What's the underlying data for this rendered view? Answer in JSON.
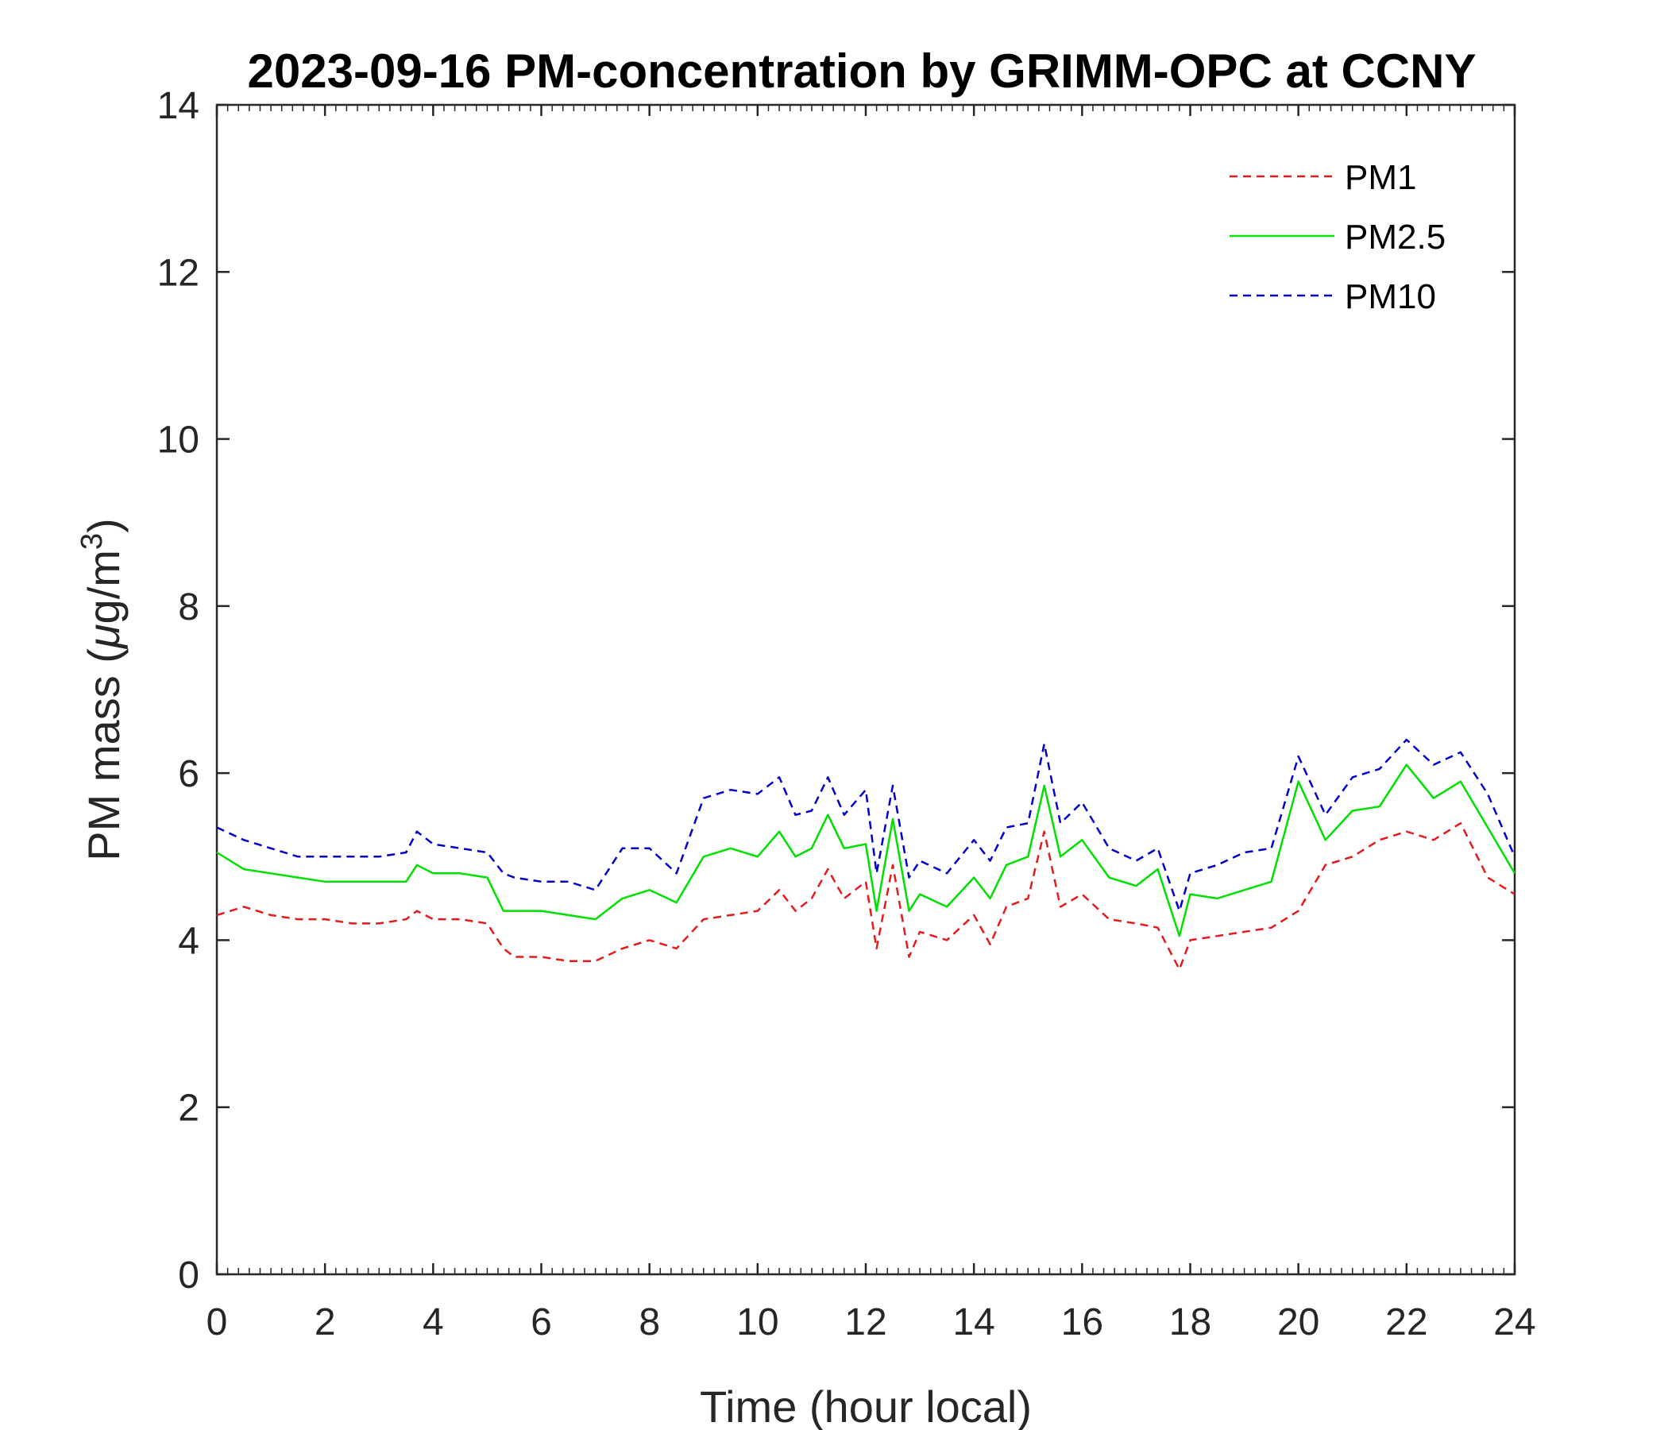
{
  "chart_data": {
    "type": "line",
    "title": "2023-09-16 PM-concentration by GRIMM-OPC at CCNY",
    "xlabel": "Time (hour local)",
    "ylabel_main": "PM mass (",
    "ylabel_mu": "μ",
    "ylabel_unit": "g/m",
    "ylabel_sup": "3",
    "ylabel_close": ")",
    "xlim": [
      0,
      24
    ],
    "ylim": [
      0,
      14
    ],
    "xticks": [
      0,
      2,
      4,
      6,
      8,
      10,
      12,
      14,
      16,
      18,
      20,
      22,
      24
    ],
    "yticks": [
      0,
      2,
      4,
      6,
      8,
      10,
      12,
      14
    ],
    "legend_position": "top-right",
    "colors": {
      "PM1": "#e41a1c",
      "PM2.5": "#00e000",
      "PM10": "#0000cc"
    },
    "x": [
      0,
      0.5,
      1,
      1.5,
      2,
      2.5,
      3,
      3.5,
      3.7,
      4,
      4.5,
      5,
      5.3,
      5.5,
      6,
      6.5,
      7,
      7.5,
      8,
      8.5,
      9,
      9.5,
      10,
      10.4,
      10.7,
      11,
      11.3,
      11.6,
      12,
      12.2,
      12.5,
      12.8,
      13,
      13.5,
      14,
      14.3,
      14.6,
      15,
      15.3,
      15.6,
      16,
      16.5,
      17,
      17.4,
      17.8,
      18,
      18.5,
      19,
      19.5,
      20,
      20.5,
      21,
      21.5,
      22,
      22.5,
      23,
      23.5,
      24
    ],
    "series": [
      {
        "name": "PM1",
        "style": "dashed",
        "values": [
          4.3,
          4.4,
          4.3,
          4.25,
          4.25,
          4.2,
          4.2,
          4.25,
          4.35,
          4.25,
          4.25,
          4.2,
          3.9,
          3.8,
          3.8,
          3.75,
          3.75,
          3.9,
          4.0,
          3.9,
          4.25,
          4.3,
          4.35,
          4.6,
          4.35,
          4.5,
          4.85,
          4.5,
          4.7,
          3.9,
          4.9,
          3.8,
          4.1,
          4.0,
          4.3,
          3.95,
          4.4,
          4.5,
          5.3,
          4.4,
          4.55,
          4.25,
          4.2,
          4.15,
          3.65,
          4.0,
          4.05,
          4.1,
          4.15,
          4.35,
          4.9,
          5.0,
          5.2,
          5.3,
          5.2,
          5.4,
          4.75,
          4.55
        ]
      },
      {
        "name": "PM2.5",
        "style": "solid",
        "values": [
          5.05,
          4.85,
          4.8,
          4.75,
          4.7,
          4.7,
          4.7,
          4.7,
          4.9,
          4.8,
          4.8,
          4.75,
          4.35,
          4.35,
          4.35,
          4.3,
          4.25,
          4.5,
          4.6,
          4.45,
          5.0,
          5.1,
          5.0,
          5.3,
          5.0,
          5.1,
          5.5,
          5.1,
          5.15,
          4.35,
          5.45,
          4.35,
          4.55,
          4.4,
          4.75,
          4.5,
          4.9,
          5.0,
          5.85,
          5.0,
          5.2,
          4.75,
          4.65,
          4.85,
          4.05,
          4.55,
          4.5,
          4.6,
          4.7,
          5.9,
          5.2,
          5.55,
          5.6,
          6.1,
          5.7,
          5.9,
          5.35,
          4.8
        ]
      },
      {
        "name": "PM10",
        "style": "dashed",
        "values": [
          5.35,
          5.2,
          5.1,
          5.0,
          5.0,
          5.0,
          5.0,
          5.05,
          5.3,
          5.15,
          5.1,
          5.05,
          4.8,
          4.75,
          4.7,
          4.7,
          4.6,
          5.1,
          5.1,
          4.8,
          5.7,
          5.8,
          5.75,
          5.95,
          5.5,
          5.55,
          5.95,
          5.5,
          5.8,
          4.8,
          5.85,
          4.75,
          4.95,
          4.8,
          5.2,
          4.95,
          5.35,
          5.4,
          6.35,
          5.4,
          5.65,
          5.1,
          4.95,
          5.1,
          4.35,
          4.8,
          4.9,
          5.05,
          5.1,
          6.2,
          5.5,
          5.95,
          6.05,
          6.4,
          6.1,
          6.25,
          5.75,
          5.0
        ]
      }
    ]
  }
}
